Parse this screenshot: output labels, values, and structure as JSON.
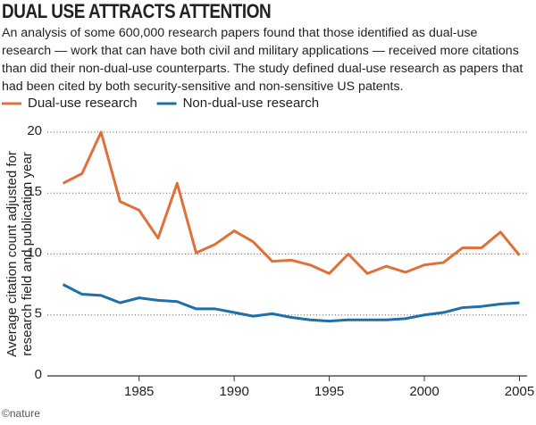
{
  "chart_data": {
    "type": "line",
    "title": "DUAL USE ATTRACTS ATTENTION",
    "subtitle": "An analysis of some 600,000 research papers found that those identified as dual-use research — work that can have both civil and military applications — received more citations than did their non-dual-use counterparts. The study defined dual-use research as papers that had been cited by both security-sensitive and non-sensitive US patents.",
    "ylabel": [
      "Average citation count adjusted for",
      "research field and publication year"
    ],
    "credit": "©nature",
    "x": [
      1981,
      1982,
      1983,
      1984,
      1985,
      1986,
      1987,
      1988,
      1989,
      1990,
      1991,
      1992,
      1993,
      1994,
      1995,
      1996,
      1997,
      1998,
      1999,
      2000,
      2001,
      2002,
      2003,
      2004,
      2005
    ],
    "series": [
      {
        "name": "Dual-use research",
        "color": "#e0703a",
        "values": [
          15.8,
          16.6,
          20.0,
          14.3,
          13.6,
          11.3,
          15.8,
          10.1,
          10.8,
          11.9,
          11.0,
          9.4,
          9.5,
          9.1,
          8.4,
          10.0,
          8.4,
          9.0,
          8.5,
          9.1,
          9.3,
          10.5,
          10.5,
          11.8,
          9.9
        ]
      },
      {
        "name": "Non-dual-use research",
        "color": "#1f6fa8",
        "values": [
          7.5,
          6.7,
          6.6,
          6.0,
          6.4,
          6.2,
          6.1,
          5.5,
          5.5,
          5.2,
          4.9,
          5.1,
          4.8,
          4.6,
          4.5,
          4.6,
          4.6,
          4.6,
          4.7,
          5.0,
          5.2,
          5.6,
          5.7,
          5.9,
          6.0
        ]
      }
    ],
    "xlim": [
      1979.8,
      2005.4
    ],
    "xticks": [
      1985,
      1990,
      1995,
      2000,
      2005
    ],
    "ylim": [
      0,
      20
    ],
    "yticks": [
      0,
      5,
      10,
      15,
      20
    ],
    "grid": true
  }
}
